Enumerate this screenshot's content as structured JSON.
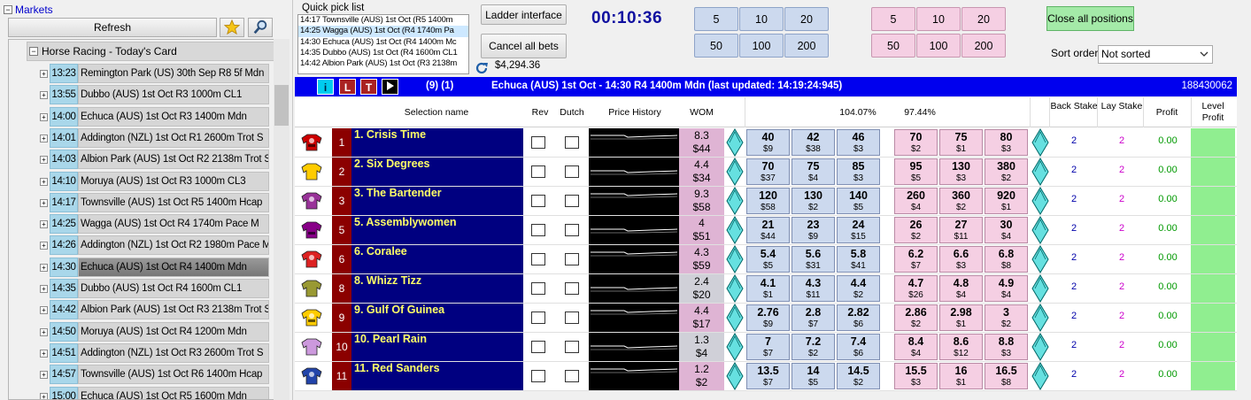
{
  "markets": {
    "title": "Markets",
    "refresh_label": "Refresh",
    "root_label": "Horse Racing - Today's Card",
    "items": [
      {
        "time": "13:23",
        "name": "Remington Park (US) 30th Sep R8 5f Mdn"
      },
      {
        "time": "13:55",
        "name": "Dubbo (AUS) 1st Oct R3 1000m CL1"
      },
      {
        "time": "14:00",
        "name": "Echuca (AUS) 1st Oct R3 1400m Mdn"
      },
      {
        "time": "14:01",
        "name": "Addington (NZL) 1st Oct R1 2600m Trot S"
      },
      {
        "time": "14:03",
        "name": "Albion Park (AUS) 1st Oct R2 2138m Trot S"
      },
      {
        "time": "14:10",
        "name": "Moruya (AUS) 1st Oct R3 1000m CL3"
      },
      {
        "time": "14:17",
        "name": "Townsville (AUS) 1st Oct R5 1400m Hcap"
      },
      {
        "time": "14:25",
        "name": "Wagga (AUS) 1st Oct R4 1740m Pace M"
      },
      {
        "time": "14:26",
        "name": "Addington (NZL) 1st Oct R2 1980m Pace M"
      },
      {
        "time": "14:30",
        "name": "Echuca (AUS) 1st Oct R4 1400m Mdn"
      },
      {
        "time": "14:35",
        "name": "Dubbo (AUS) 1st Oct R4 1600m CL1"
      },
      {
        "time": "14:42",
        "name": "Albion Park (AUS) 1st Oct R3 2138m Trot S"
      },
      {
        "time": "14:50",
        "name": "Moruya (AUS) 1st Oct R4 1200m Mdn"
      },
      {
        "time": "14:51",
        "name": "Addington (NZL) 1st Oct R3 2600m Trot S"
      },
      {
        "time": "14:57",
        "name": "Townsville (AUS) 1st Oct R6 1400m Hcap"
      },
      {
        "time": "15:00",
        "name": "Echuca (AUS) 1st Oct R5 1600m Mdn"
      }
    ]
  },
  "quick_pick": {
    "label": "Quick pick list",
    "items": [
      "14:17 Townsville (AUS) 1st Oct (R5 1400m",
      "14:25 Wagga (AUS) 1st Oct (R4 1740m Pa",
      "14:30 Echuca (AUS) 1st Oct (R4 1400m Mc",
      "14:35 Dubbo (AUS) 1st Oct (R4 1600m CL1",
      "14:42 Albion Park (AUS) 1st Oct (R3 2138m"
    ]
  },
  "toolbar": {
    "ladder_label": "Ladder interface",
    "cancel_label": "Cancel all bets",
    "timer": "00:10:36",
    "balance": "$4,294.36",
    "back_stakes": [
      "5",
      "10",
      "20",
      "50",
      "100",
      "200"
    ],
    "lay_stakes": [
      "5",
      "10",
      "20",
      "50",
      "100",
      "200"
    ],
    "close_all_label": "Close all positions",
    "sort_label": "Sort order",
    "sort_value": "Not sorted"
  },
  "ladder": {
    "btn_i": "i",
    "btn_l": "L",
    "btn_t": "T",
    "counts": "(9) (1)",
    "title": "Echuca (AUS) 1st Oct - 14:30 R4 1400m Mdn (last updated: 14:19:24:945)",
    "market_id": "188430062",
    "cols": {
      "selection": "Selection name",
      "rev": "Rev",
      "dutch": "Dutch",
      "history": "Price History",
      "wom": "WOM",
      "back_pct": "104.07%",
      "lay_pct": "97.44%",
      "back_stake": "Back Stake",
      "lay_stake": "Lay Stake",
      "profit": "Profit",
      "level_profit": "Level Profit"
    },
    "runners": [
      {
        "num": "1",
        "name": "1. Crisis Time",
        "wom_pct": "8.3",
        "wom_amt": "$44",
        "back": [
          [
            "40",
            "$9"
          ],
          [
            "42",
            "$38"
          ],
          [
            "46",
            "$3"
          ]
        ],
        "lay": [
          [
            "70",
            "$2"
          ],
          [
            "75",
            "$1"
          ],
          [
            "80",
            "$3"
          ]
        ],
        "back_stake": "2",
        "lay_stake": "2",
        "profit": "0.00",
        "silk": "#cc0000",
        "wom_grey": false
      },
      {
        "num": "2",
        "name": "2. Six Degrees",
        "wom_pct": "4.4",
        "wom_amt": "$34",
        "back": [
          [
            "70",
            "$37"
          ],
          [
            "75",
            "$4"
          ],
          [
            "85",
            "$3"
          ]
        ],
        "lay": [
          [
            "95",
            "$5"
          ],
          [
            "130",
            "$3"
          ],
          [
            "380",
            "$2"
          ]
        ],
        "back_stake": "2",
        "lay_stake": "2",
        "profit": "0.00",
        "silk": "#ffcc00",
        "wom_grey": false
      },
      {
        "num": "3",
        "name": "3. The Bartender",
        "wom_pct": "9.3",
        "wom_amt": "$58",
        "back": [
          [
            "120",
            "$58"
          ],
          [
            "130",
            "$2"
          ],
          [
            "140",
            "$5"
          ]
        ],
        "lay": [
          [
            "260",
            "$4"
          ],
          [
            "360",
            "$2"
          ],
          [
            "920",
            "$1"
          ]
        ],
        "back_stake": "2",
        "lay_stake": "2",
        "profit": "0.00",
        "silk": "#993399",
        "wom_grey": false
      },
      {
        "num": "5",
        "name": "5. Assemblywomen",
        "wom_pct": "4",
        "wom_amt": "$51",
        "back": [
          [
            "21",
            "$44"
          ],
          [
            "23",
            "$9"
          ],
          [
            "24",
            "$15"
          ]
        ],
        "lay": [
          [
            "26",
            "$2"
          ],
          [
            "27",
            "$11"
          ],
          [
            "30",
            "$4"
          ]
        ],
        "back_stake": "2",
        "lay_stake": "2",
        "profit": "0.00",
        "silk": "#880088",
        "wom_grey": false
      },
      {
        "num": "6",
        "name": "6. Coralee",
        "wom_pct": "4.3",
        "wom_amt": "$59",
        "back": [
          [
            "5.4",
            "$5"
          ],
          [
            "5.6",
            "$31"
          ],
          [
            "5.8",
            "$41"
          ]
        ],
        "lay": [
          [
            "6.2",
            "$7"
          ],
          [
            "6.6",
            "$3"
          ],
          [
            "6.8",
            "$8"
          ]
        ],
        "back_stake": "2",
        "lay_stake": "2",
        "profit": "0.00",
        "silk": "#dd2222",
        "wom_grey": false
      },
      {
        "num": "8",
        "name": "8. Whizz Tizz",
        "wom_pct": "2.4",
        "wom_amt": "$20",
        "back": [
          [
            "4.1",
            "$1"
          ],
          [
            "4.3",
            "$11"
          ],
          [
            "4.4",
            "$2"
          ]
        ],
        "lay": [
          [
            "4.7",
            "$26"
          ],
          [
            "4.8",
            "$4"
          ],
          [
            "4.9",
            "$4"
          ]
        ],
        "back_stake": "2",
        "lay_stake": "2",
        "profit": "0.00",
        "silk": "#999933",
        "wom_grey": true
      },
      {
        "num": "9",
        "name": "9. Gulf Of Guinea",
        "wom_pct": "4.4",
        "wom_amt": "$17",
        "back": [
          [
            "2.76",
            "$9"
          ],
          [
            "2.8",
            "$7"
          ],
          [
            "2.82",
            "$6"
          ]
        ],
        "lay": [
          [
            "2.86",
            "$2"
          ],
          [
            "2.98",
            "$1"
          ],
          [
            "3",
            "$2"
          ]
        ],
        "back_stake": "2",
        "lay_stake": "2",
        "profit": "0.00",
        "silk": "#ffcc00",
        "wom_grey": false
      },
      {
        "num": "10",
        "name": "10. Pearl Rain",
        "wom_pct": "1.3",
        "wom_amt": "$4",
        "back": [
          [
            "7",
            "$7"
          ],
          [
            "7.2",
            "$2"
          ],
          [
            "7.4",
            "$6"
          ]
        ],
        "lay": [
          [
            "8.4",
            "$4"
          ],
          [
            "8.6",
            "$12"
          ],
          [
            "8.8",
            "$3"
          ]
        ],
        "back_stake": "2",
        "lay_stake": "2",
        "profit": "0.00",
        "silk": "#cc99dd",
        "wom_grey": true
      },
      {
        "num": "11",
        "name": "11. Red Sanders",
        "wom_pct": "1.2",
        "wom_amt": "$2",
        "back": [
          [
            "13.5",
            "$7"
          ],
          [
            "14",
            "$5"
          ],
          [
            "14.5",
            "$2"
          ]
        ],
        "lay": [
          [
            "15.5",
            "$3"
          ],
          [
            "16",
            "$1"
          ],
          [
            "16.5",
            "$8"
          ]
        ],
        "back_stake": "2",
        "lay_stake": "2",
        "profit": "0.00",
        "silk": "#2244aa",
        "wom_grey": false
      }
    ]
  },
  "colors": {
    "back": "#ccd9ee",
    "lay": "#f5cfe3",
    "header": "#0000ee",
    "name_bg": "#000080",
    "name_fg": "#ffff66",
    "num_bg": "#8b0000",
    "profit": "#009900",
    "stake_back": "#0000aa",
    "stake_lay": "#cc00cc",
    "level": "#90ee90"
  },
  "icons": {
    "favourites": "star-icon",
    "search": "search-icon",
    "refresh_balance": "refresh-icon",
    "play": "play-icon",
    "expand": "plus-icon",
    "collapse": "minus-icon"
  }
}
